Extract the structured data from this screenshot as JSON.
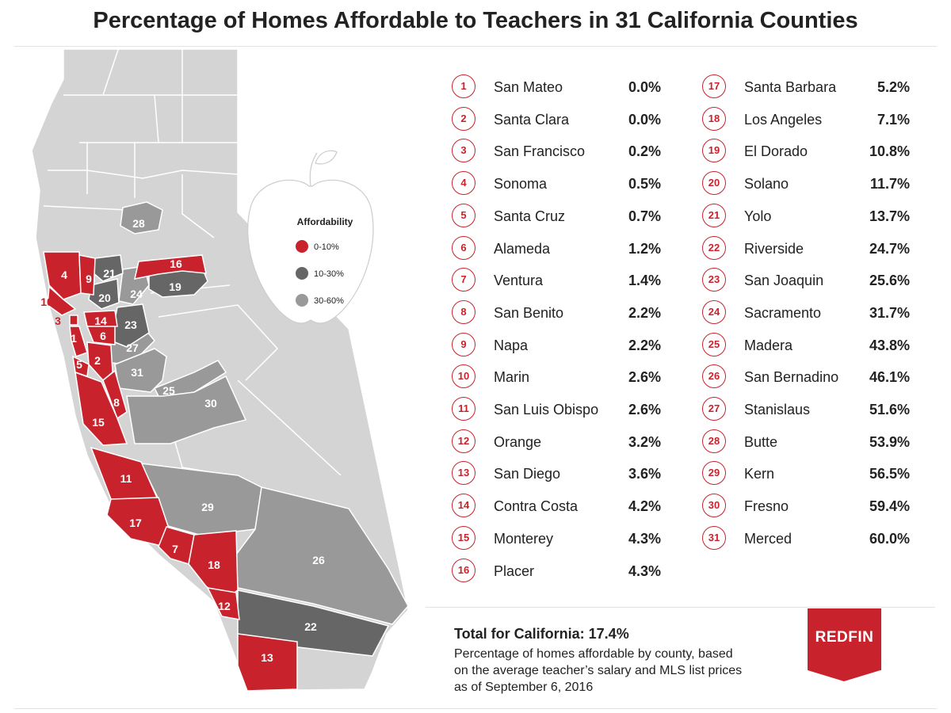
{
  "title": "Percentage of Homes Affordable to Teachers in 31 California Counties",
  "legend": {
    "title": "Affordability",
    "items": [
      {
        "label": "0-10%",
        "color": "#c8232c"
      },
      {
        "label": "10-30%",
        "color": "#666666"
      },
      {
        "label": "30-60%",
        "color": "#999999"
      }
    ]
  },
  "counties": [
    {
      "rank": "1",
      "name": "San Mateo",
      "pct": "0.0%"
    },
    {
      "rank": "2",
      "name": "Santa Clara",
      "pct": "0.0%"
    },
    {
      "rank": "3",
      "name": "San Francisco",
      "pct": "0.2%"
    },
    {
      "rank": "4",
      "name": "Sonoma",
      "pct": "0.5%"
    },
    {
      "rank": "5",
      "name": "Santa Cruz",
      "pct": "0.7%"
    },
    {
      "rank": "6",
      "name": "Alameda",
      "pct": "1.2%"
    },
    {
      "rank": "7",
      "name": "Ventura",
      "pct": "1.4%"
    },
    {
      "rank": "8",
      "name": "San Benito",
      "pct": "2.2%"
    },
    {
      "rank": "9",
      "name": "Napa",
      "pct": "2.2%"
    },
    {
      "rank": "10",
      "name": "Marin",
      "pct": "2.6%"
    },
    {
      "rank": "11",
      "name": "San Luis Obispo",
      "pct": "2.6%"
    },
    {
      "rank": "12",
      "name": "Orange",
      "pct": "3.2%"
    },
    {
      "rank": "13",
      "name": "San Diego",
      "pct": "3.6%"
    },
    {
      "rank": "14",
      "name": "Contra Costa",
      "pct": "4.2%"
    },
    {
      "rank": "15",
      "name": "Monterey",
      "pct": "4.3%"
    },
    {
      "rank": "16",
      "name": "Placer",
      "pct": "4.3%"
    },
    {
      "rank": "17",
      "name": "Santa Barbara",
      "pct": "5.2%"
    },
    {
      "rank": "18",
      "name": "Los Angeles",
      "pct": "7.1%"
    },
    {
      "rank": "19",
      "name": "El Dorado",
      "pct": "10.8%"
    },
    {
      "rank": "20",
      "name": "Solano",
      "pct": "11.7%"
    },
    {
      "rank": "21",
      "name": "Yolo",
      "pct": "13.7%"
    },
    {
      "rank": "22",
      "name": "Riverside",
      "pct": "24.7%"
    },
    {
      "rank": "23",
      "name": "San Joaquin",
      "pct": "25.6%"
    },
    {
      "rank": "24",
      "name": "Sacramento",
      "pct": "31.7%"
    },
    {
      "rank": "25",
      "name": "Madera",
      "pct": "43.8%"
    },
    {
      "rank": "26",
      "name": "San Bernadino",
      "pct": "46.1%"
    },
    {
      "rank": "27",
      "name": "Stanislaus",
      "pct": "51.6%"
    },
    {
      "rank": "28",
      "name": "Butte",
      "pct": "53.9%"
    },
    {
      "rank": "29",
      "name": "Kern",
      "pct": "56.5%"
    },
    {
      "rank": "30",
      "name": "Fresno",
      "pct": "59.4%"
    },
    {
      "rank": "31",
      "name": "Merced",
      "pct": "60.0%"
    }
  ],
  "footer": {
    "total": "Total for California: 17.4%",
    "desc_lines": [
      "Percentage of homes affordable by county, based",
      "on the average teacher’s salary and MLS list prices",
      "as of September 6, 2016"
    ]
  },
  "logo": "REDFIN",
  "colors": {
    "red": "#c8232c",
    "dark": "#666666",
    "mid": "#999999",
    "light": "#d4d4d4",
    "border": "#ffffff"
  }
}
